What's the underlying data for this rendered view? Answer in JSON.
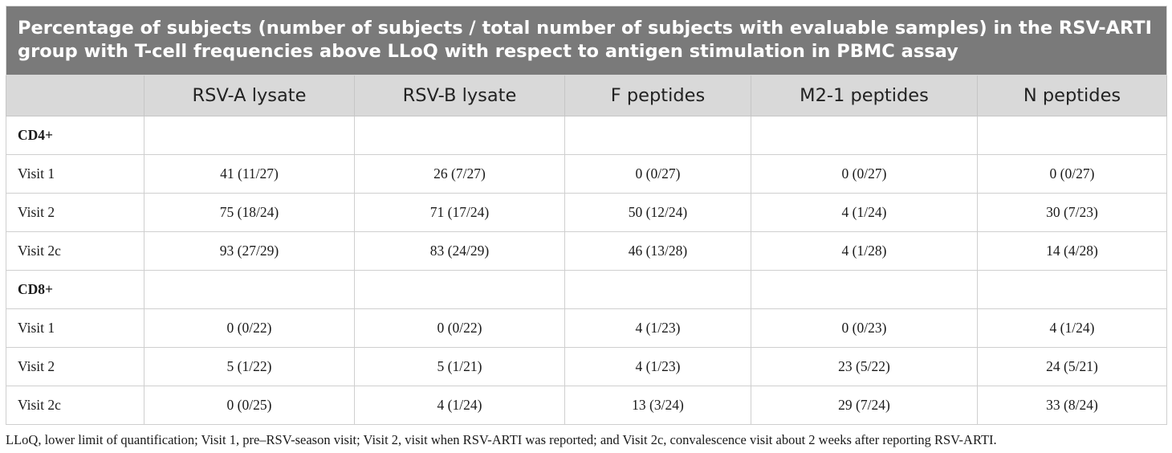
{
  "caption": "Percentage of subjects (number of subjects / total number of subjects with evaluable samples) in the RSV-ARTI group with T-cell frequencies above LLoQ with respect to antigen stimulation in PBMC assay",
  "columns": [
    "",
    "RSV-A lysate",
    "RSV-B lysate",
    "F peptides",
    "M2-1 peptides",
    "N peptides"
  ],
  "sections": [
    {
      "label": "CD4+",
      "rows": [
        {
          "label": "Visit 1",
          "cells": [
            "41 (11/27)",
            "26 (7/27)",
            "0 (0/27)",
            "0 (0/27)",
            "0 (0/27)"
          ]
        },
        {
          "label": "Visit 2",
          "cells": [
            "75 (18/24)",
            "71 (17/24)",
            "50 (12/24)",
            "4 (1/24)",
            "30 (7/23)"
          ]
        },
        {
          "label": "Visit 2c",
          "cells": [
            "93 (27/29)",
            "83 (24/29)",
            "46 (13/28)",
            "4 (1/28)",
            "14 (4/28)"
          ]
        }
      ]
    },
    {
      "label": "CD8+",
      "rows": [
        {
          "label": "Visit 1",
          "cells": [
            "0 (0/22)",
            "0 (0/22)",
            "4 (1/23)",
            "0 (0/23)",
            "4 (1/24)"
          ]
        },
        {
          "label": "Visit 2",
          "cells": [
            "5 (1/22)",
            "5 (1/21)",
            "4 (1/23)",
            "23 (5/22)",
            "24 (5/21)"
          ]
        },
        {
          "label": "Visit 2c",
          "cells": [
            "0 (0/25)",
            "4 (1/24)",
            "13 (3/24)",
            "29 (7/24)",
            "33 (8/24)"
          ]
        }
      ]
    }
  ],
  "footnote": "LLoQ, lower limit of quantification; Visit 1, pre–RSV-season visit; Visit 2, visit when RSV-ARTI was reported; and Visit 2c, convalescence visit about 2 weeks after reporting RSV-ARTI."
}
